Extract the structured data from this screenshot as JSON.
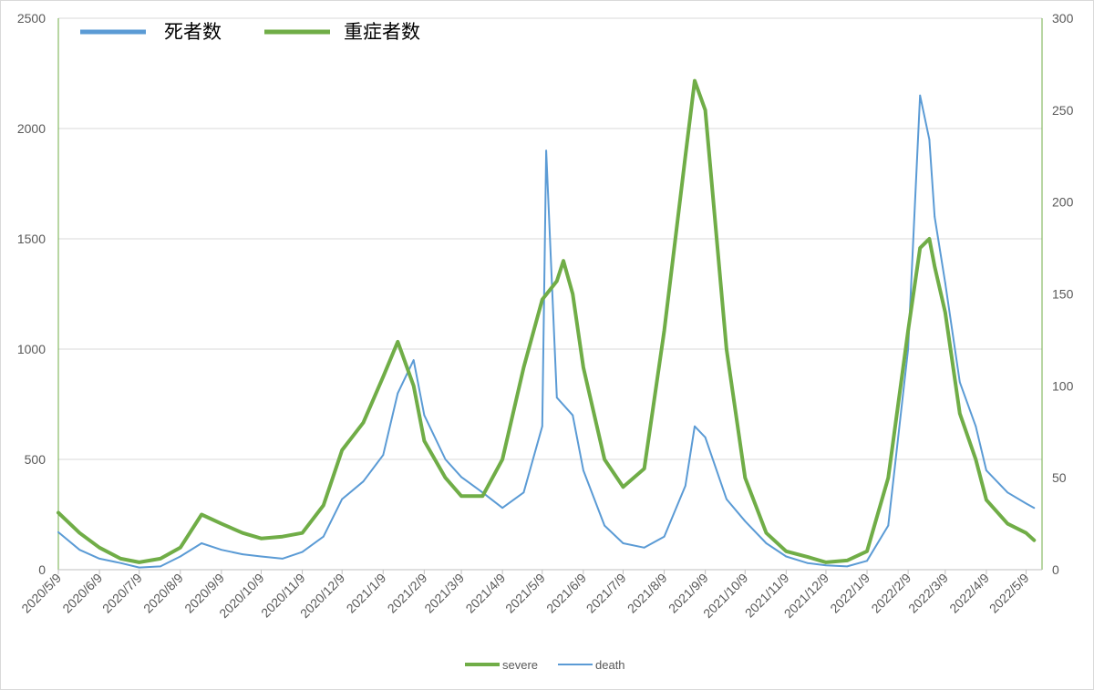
{
  "chart_data": {
    "type": "line",
    "x_tick_labels": [
      "2020/5/9",
      "2020/6/9",
      "2020/7/9",
      "2020/8/9",
      "2020/9/9",
      "2020/10/9",
      "2020/11/9",
      "2020/12/9",
      "2021/1/9",
      "2021/2/9",
      "2021/3/9",
      "2021/4/9",
      "2021/5/9",
      "2021/6/9",
      "2021/7/9",
      "2021/8/9",
      "2021/9/9",
      "2021/10/9",
      "2021/11/9",
      "2021/12/9",
      "2022/1/9",
      "2022/2/9",
      "2022/3/9",
      "2022/4/9",
      "2022/5/9"
    ],
    "y_left": {
      "ticks": [
        "0",
        "500",
        "1000",
        "1500",
        "2000",
        "2500"
      ],
      "lim": [
        0,
        2500
      ]
    },
    "y_right": {
      "ticks": [
        "0",
        "50",
        "100",
        "150",
        "200",
        "250",
        "300"
      ],
      "lim": [
        0,
        300
      ]
    },
    "grid": true,
    "top_legend": [
      {
        "label": "死者数",
        "color": "#5b9bd5"
      },
      {
        "label": "重症者数",
        "color": "#70ad47"
      }
    ],
    "bottom_legend": [
      {
        "label": "severe",
        "color": "#70ad47"
      },
      {
        "label": "death",
        "color": "#5b9bd5"
      }
    ],
    "series": [
      {
        "name": "death",
        "axis": "left",
        "color": "#5b9bd5",
        "x": [
          "2020/5/9",
          "2020/5/25",
          "2020/6/9",
          "2020/6/25",
          "2020/7/9",
          "2020/7/25",
          "2020/8/9",
          "2020/8/25",
          "2020/9/9",
          "2020/9/25",
          "2020/10/9",
          "2020/10/25",
          "2020/11/9",
          "2020/11/25",
          "2020/12/9",
          "2020/12/25",
          "2021/1/9",
          "2021/1/20",
          "2021/2/1",
          "2021/2/9",
          "2021/2/25",
          "2021/3/9",
          "2021/3/25",
          "2021/4/9",
          "2021/4/25",
          "2021/5/9",
          "2021/5/12",
          "2021/5/20",
          "2021/6/1",
          "2021/6/9",
          "2021/6/25",
          "2021/7/9",
          "2021/7/25",
          "2021/8/9",
          "2021/8/25",
          "2021/9/1",
          "2021/9/9",
          "2021/9/25",
          "2021/10/9",
          "2021/10/25",
          "2021/11/9",
          "2021/11/25",
          "2021/12/9",
          "2021/12/25",
          "2022/1/9",
          "2022/1/25",
          "2022/2/9",
          "2022/2/18",
          "2022/2/25",
          "2022/3/1",
          "2022/3/9",
          "2022/3/20",
          "2022/4/1",
          "2022/4/9",
          "2022/4/25",
          "2022/5/9",
          "2022/5/15"
        ],
        "values": [
          170,
          90,
          50,
          30,
          10,
          15,
          60,
          120,
          90,
          70,
          60,
          50,
          80,
          150,
          320,
          400,
          520,
          800,
          950,
          700,
          500,
          420,
          350,
          280,
          350,
          650,
          1900,
          780,
          700,
          450,
          200,
          120,
          100,
          150,
          380,
          650,
          600,
          320,
          220,
          120,
          60,
          30,
          20,
          15,
          40,
          200,
          1000,
          2150,
          1950,
          1600,
          1300,
          850,
          650,
          450,
          350,
          300,
          280
        ]
      },
      {
        "name": "severe",
        "axis": "right",
        "color": "#70ad47",
        "x": [
          "2020/5/9",
          "2020/5/25",
          "2020/6/9",
          "2020/6/25",
          "2020/7/9",
          "2020/7/25",
          "2020/8/9",
          "2020/8/25",
          "2020/9/9",
          "2020/9/25",
          "2020/10/9",
          "2020/10/25",
          "2020/11/9",
          "2020/11/25",
          "2020/12/9",
          "2020/12/25",
          "2021/1/9",
          "2021/1/20",
          "2021/2/1",
          "2021/2/9",
          "2021/2/25",
          "2021/3/9",
          "2021/3/25",
          "2021/4/9",
          "2021/4/25",
          "2021/5/9",
          "2021/5/20",
          "2021/5/25",
          "2021/6/1",
          "2021/6/9",
          "2021/6/25",
          "2021/7/9",
          "2021/7/25",
          "2021/8/9",
          "2021/8/25",
          "2021/9/1",
          "2021/9/9",
          "2021/9/25",
          "2021/10/9",
          "2021/10/25",
          "2021/11/9",
          "2021/11/25",
          "2021/12/9",
          "2021/12/25",
          "2022/1/9",
          "2022/1/25",
          "2022/2/9",
          "2022/2/18",
          "2022/2/25",
          "2022/3/1",
          "2022/3/9",
          "2022/3/20",
          "2022/4/1",
          "2022/4/9",
          "2022/4/25",
          "2022/5/9",
          "2022/5/15"
        ],
        "values": [
          31,
          20,
          12,
          6,
          4,
          6,
          12,
          30,
          25,
          20,
          17,
          18,
          20,
          35,
          65,
          80,
          105,
          124,
          100,
          70,
          50,
          40,
          40,
          60,
          110,
          147,
          157,
          168,
          150,
          110,
          60,
          45,
          55,
          130,
          225,
          266,
          250,
          120,
          50,
          20,
          10,
          7,
          4,
          5,
          10,
          50,
          130,
          175,
          180,
          165,
          140,
          85,
          60,
          38,
          25,
          20,
          16
        ]
      }
    ]
  }
}
